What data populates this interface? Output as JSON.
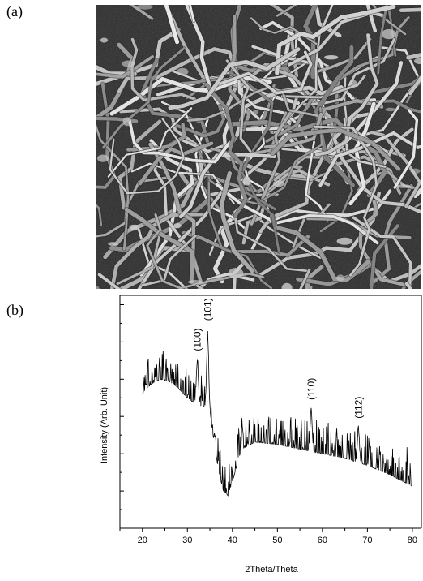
{
  "figure": {
    "panel_a_label": "(a)",
    "panel_b_label": "(b)"
  },
  "sem_image": {
    "description_icon": "sem-micrograph-nanofibers",
    "background_color": "#2a2a2a",
    "fiber_color": "#cfcfcf"
  },
  "chart_data": {
    "type": "line",
    "xlabel": "2Theta/Theta",
    "ylabel": "Intensity (Arb. Unit)",
    "xlim": [
      15,
      82
    ],
    "ylim": [
      0,
      1
    ],
    "x_ticks": [
      20,
      30,
      40,
      50,
      60,
      70,
      80
    ],
    "series_color": "#000000",
    "baseline_profile": {
      "x": [
        20,
        22,
        24,
        26,
        28,
        30,
        32,
        34,
        35,
        36,
        37,
        38,
        39,
        40,
        42,
        45,
        50,
        55,
        60,
        65,
        70,
        75,
        80
      ],
      "y": [
        0.58,
        0.62,
        0.64,
        0.63,
        0.6,
        0.56,
        0.53,
        0.52,
        0.5,
        0.36,
        0.24,
        0.16,
        0.14,
        0.2,
        0.34,
        0.37,
        0.36,
        0.34,
        0.32,
        0.3,
        0.27,
        0.23,
        0.18
      ]
    },
    "peaks": [
      {
        "label": "(100)",
        "x": 32.2,
        "y": 0.74
      },
      {
        "label": "(101)",
        "x": 34.5,
        "y": 0.87
      },
      {
        "label": "(110)",
        "x": 57.5,
        "y": 0.53
      },
      {
        "label": "(112)",
        "x": 68.0,
        "y": 0.45
      }
    ]
  }
}
